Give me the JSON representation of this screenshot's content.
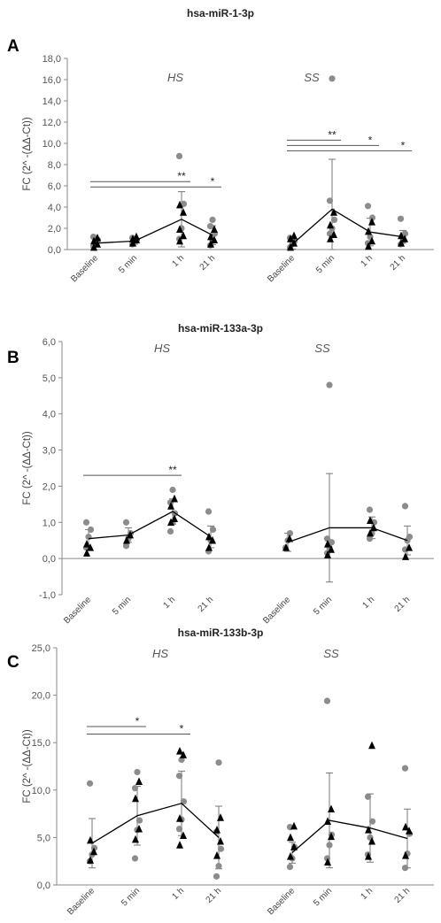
{
  "chart_data": [
    {
      "type": "scatter",
      "panel_label": "A",
      "title": "hsa-miR-1-3p",
      "ylabel": "FC (2^ -(ΔΔ-Ct))",
      "ylim": [
        0,
        18
      ],
      "yticks": [
        "0,0",
        "2,0",
        "4,0",
        "6,0",
        "8,0",
        "10,0",
        "12,0",
        "14,0",
        "16,0",
        "18,0"
      ],
      "y_tick_values": [
        0,
        2,
        4,
        6,
        8,
        10,
        12,
        14,
        16,
        18
      ],
      "groups": [
        {
          "name": "HS",
          "categories": [
            "Baseline",
            "5 min",
            "1 h",
            "21 h"
          ],
          "mean": [
            0.6,
            0.8,
            2.85,
            1.35
          ],
          "sd": [
            0.35,
            0.3,
            2.6,
            0.9
          ],
          "points_grey": [
            [
              0.3,
              0.6,
              0.9,
              1.2
            ],
            [
              0.5,
              0.7,
              0.9,
              1.1
            ],
            [
              1.0,
              2.0,
              4.3,
              8.8
            ],
            [
              0.4,
              0.8,
              1.5,
              2.2,
              2.8
            ]
          ],
          "points_black": [
            [
              0.2,
              0.5,
              0.8,
              1.1
            ],
            [
              0.6,
              0.9,
              1.0,
              1.2
            ],
            [
              0.8,
              1.3,
              1.9,
              3.5,
              4.2
            ],
            [
              0.5,
              0.9,
              1.2,
              1.9
            ]
          ],
          "significance": [
            {
              "from": 0,
              "to": 2,
              "label": "**",
              "y": 6.4
            },
            {
              "from": 0,
              "to": 3,
              "label": "*",
              "y": 5.9
            }
          ]
        },
        {
          "name": "SS",
          "categories": [
            "Baseline",
            "5 min",
            "1 h",
            "21 h"
          ],
          "mean": [
            0.5,
            3.8,
            1.65,
            1.2
          ],
          "sd": [
            0.45,
            4.7,
            1.3,
            0.6
          ],
          "points_grey": [
            [
              0.2,
              0.5,
              0.8,
              1.1
            ],
            [
              1.5,
              2.0,
              2.8,
              4.6,
              16.1
            ],
            [
              0.6,
              1.2,
              3.0,
              4.1
            ],
            [
              0.5,
              0.8,
              1.5,
              2.9
            ]
          ],
          "points_black": [
            [
              0.2,
              0.6,
              1.0,
              1.3
            ],
            [
              1.0,
              1.4,
              2.3,
              3.5
            ],
            [
              0.3,
              0.8,
              1.7,
              2.6
            ],
            [
              0.6,
              1.0,
              1.3
            ]
          ],
          "significance": [
            {
              "from": 0,
              "to": 1,
              "label": "**",
              "y": 10.3
            },
            {
              "from": 0,
              "to": 2,
              "label": "*",
              "y": 9.8
            },
            {
              "from": 0,
              "to": 3,
              "label": "*",
              "y": 9.3
            }
          ]
        }
      ]
    },
    {
      "type": "scatter",
      "panel_label": "B",
      "title": "hsa-miR-133a-3p",
      "ylabel": "FC (2^ -(ΔΔ-Ct))",
      "ylim": [
        -1,
        6
      ],
      "yticks": [
        "-1,0",
        "0,0",
        "1,0",
        "2,0",
        "3,0",
        "4,0",
        "5,0",
        "6,0"
      ],
      "y_tick_values": [
        -1,
        0,
        1,
        2,
        3,
        4,
        5,
        6
      ],
      "groups": [
        {
          "name": "HS",
          "categories": [
            "Baseline",
            "5 min",
            "1 h",
            "21 h"
          ],
          "mean": [
            0.55,
            0.65,
            1.3,
            0.6
          ],
          "sd": [
            0.25,
            0.2,
            0.35,
            0.3
          ],
          "points_grey": [
            [
              0.3,
              0.6,
              0.8,
              1.0
            ],
            [
              0.35,
              0.55,
              0.7,
              1.0
            ],
            [
              0.75,
              1.0,
              1.25,
              1.55,
              1.9
            ],
            [
              0.2,
              0.5,
              0.8,
              1.3
            ]
          ],
          "points_black": [
            [
              0.15,
              0.3,
              0.4
            ],
            [
              0.5,
              0.65
            ],
            [
              1.0,
              1.1,
              1.45,
              1.65
            ],
            [
              0.3,
              0.5,
              0.6
            ]
          ],
          "significance": [
            {
              "from": 0,
              "to": 2,
              "label": "**",
              "y": 2.3
            }
          ]
        },
        {
          "name": "SS",
          "categories": [
            "Baseline",
            "5 min",
            "1 h",
            "21 h"
          ],
          "mean": [
            0.45,
            0.85,
            0.85,
            0.5
          ],
          "sd": [
            0.25,
            1.5,
            0.3,
            0.4
          ],
          "points_grey": [
            [
              0.3,
              0.5,
              0.7
            ],
            [
              0.15,
              0.3,
              0.45,
              0.55,
              4.8
            ],
            [
              0.55,
              0.7,
              1.0,
              1.35
            ],
            [
              0.25,
              0.5,
              0.6,
              1.45
            ]
          ],
          "points_black": [
            [
              0.3,
              0.55
            ],
            [
              0.1,
              0.25,
              0.4
            ],
            [
              0.7,
              0.85,
              1.05
            ],
            [
              0.05,
              0.3
            ]
          ],
          "significance": []
        }
      ]
    },
    {
      "type": "scatter",
      "panel_label": "C",
      "title": "hsa-miR-133b-3p",
      "ylabel": "FC (2^ -(ΔΔ-Ct))",
      "ylim": [
        0,
        25
      ],
      "yticks": [
        "0,0",
        "5,0",
        "10,0",
        "15,0",
        "20,0",
        "25,0"
      ],
      "y_tick_values": [
        0,
        5,
        10,
        15,
        20,
        25
      ],
      "groups": [
        {
          "name": "HS",
          "categories": [
            "Baseline",
            "5 min",
            "1 h",
            "21 h"
          ],
          "mean": [
            4.4,
            7.3,
            8.6,
            5.0
          ],
          "sd": [
            2.6,
            3.1,
            3.4,
            3.3
          ],
          "points_grey": [
            [
              2.5,
              3.2,
              3.9,
              10.7
            ],
            [
              2.8,
              5.8,
              6.8,
              10.2,
              11.9
            ],
            [
              5.9,
              6.9,
              8.8,
              11.5,
              13.2
            ],
            [
              0.9,
              2.0,
              3.8,
              5.6,
              12.9
            ]
          ],
          "points_black": [
            [
              2.6,
              3.5,
              4.7
            ],
            [
              4.8,
              5.9,
              9.1,
              10.9
            ],
            [
              4.2,
              5.2,
              7.0,
              13.7,
              14.1
            ],
            [
              3.1,
              4.6,
              5.8,
              7.1
            ]
          ],
          "significance": [
            {
              "from": 0,
              "to": 1,
              "label": "*",
              "y": 16.7
            },
            {
              "from": 0,
              "to": 2,
              "label": "*",
              "y": 15.9
            }
          ]
        },
        {
          "name": "SS",
          "categories": [
            "Baseline",
            "5 min",
            "1 h",
            "21 h"
          ],
          "mean": [
            3.4,
            6.8,
            6.0,
            4.9
          ],
          "sd": [
            1.1,
            5.0,
            3.6,
            3.1
          ],
          "points_grey": [
            [
              1.9,
              2.8,
              4.0,
              6.1
            ],
            [
              2.8,
              4.2,
              5.3,
              19.4
            ],
            [
              3.2,
              5.0,
              6.7,
              9.3
            ],
            [
              1.8,
              3.3,
              5.4,
              12.3
            ]
          ],
          "points_black": [
            [
              3.0,
              4.0,
              5.0,
              6.2
            ],
            [
              2.4,
              5.1,
              6.7,
              8.0
            ],
            [
              3.0,
              4.6,
              5.8,
              14.7
            ],
            [
              3.1,
              5.7,
              6.1
            ]
          ],
          "significance": []
        }
      ]
    }
  ],
  "colors": {
    "grey": "#8c8c8c",
    "black": "#000000",
    "errorbar": "#777777",
    "axis": "#888888",
    "meanline": "#000000"
  }
}
